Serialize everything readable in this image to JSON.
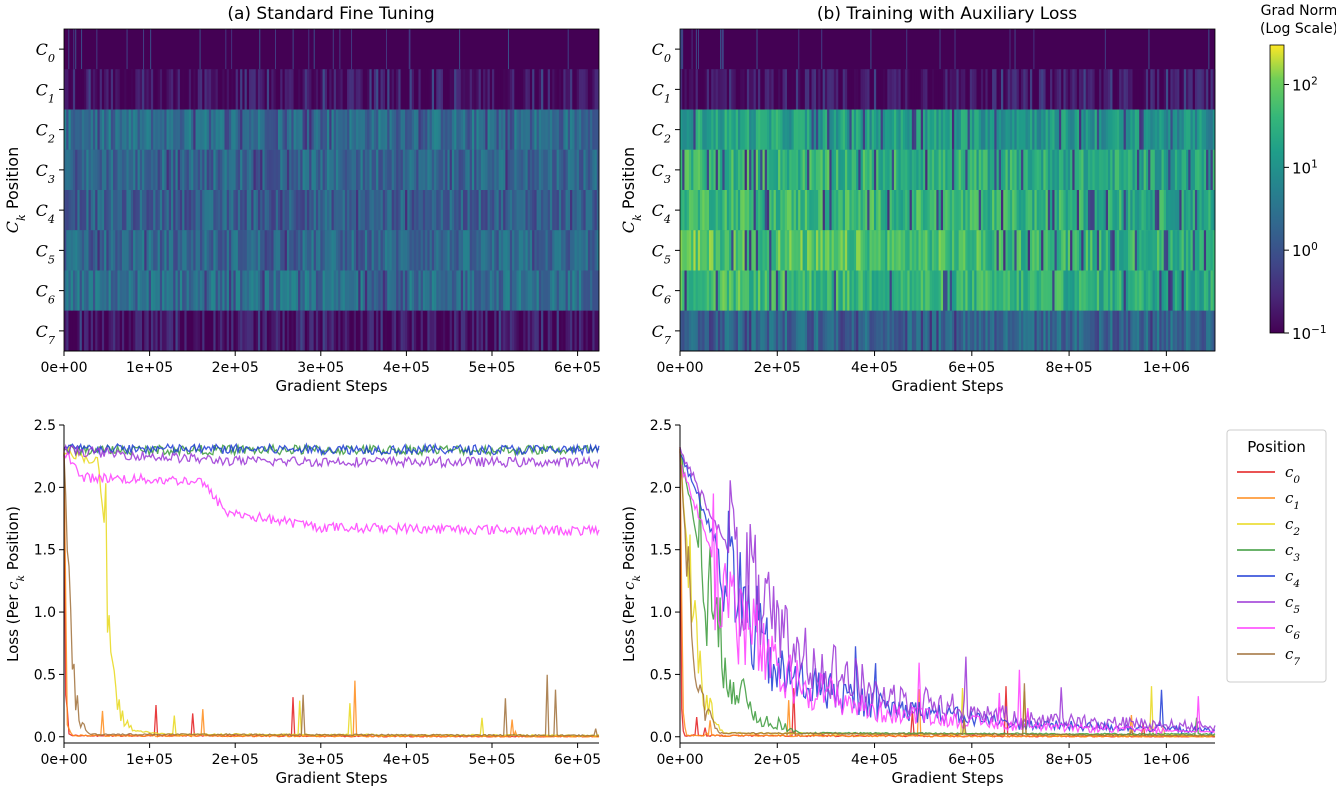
{
  "chart_data": [
    {
      "id": "heat_a",
      "type": "heatmap",
      "title": "(a) Standard Fine Tuning",
      "xlabel": "Gradient Steps",
      "ylabel": "Position",
      "ylabel_symbol": "C",
      "ylabel_sub": "k",
      "xlim": [
        0,
        625000
      ],
      "xticks": [
        0,
        100000,
        200000,
        300000,
        400000,
        500000,
        600000
      ],
      "xtick_labels": [
        "0e+00",
        "1e+05",
        "2e+05",
        "3e+05",
        "4e+05",
        "5e+05",
        "6e+05"
      ],
      "rows": [
        "C0",
        "C1",
        "C2",
        "C3",
        "C4",
        "C5",
        "C6",
        "C7"
      ],
      "row_symbol": "C",
      "row_subs": [
        "0",
        "1",
        "2",
        "3",
        "4",
        "5",
        "6",
        "7"
      ],
      "row_approx_grad_norm": [
        0.1,
        0.13,
        2.5,
        2.0,
        1.5,
        2.0,
        2.5,
        0.15
      ]
    },
    {
      "id": "heat_b",
      "type": "heatmap",
      "title": "(b) Training with Auxiliary Loss",
      "xlabel": "Gradient Steps",
      "ylabel": "Position",
      "ylabel_symbol": "C",
      "ylabel_sub": "k",
      "xlim": [
        0,
        1100000
      ],
      "xticks": [
        0,
        200000,
        400000,
        600000,
        800000,
        1000000
      ],
      "xtick_labels": [
        "0e+00",
        "2e+05",
        "4e+05",
        "6e+05",
        "8e+05",
        "1e+06"
      ],
      "rows": [
        "C0",
        "C1",
        "C2",
        "C3",
        "C4",
        "C5",
        "C6",
        "C7"
      ],
      "row_symbol": "C",
      "row_subs": [
        "0",
        "1",
        "2",
        "3",
        "4",
        "5",
        "6",
        "7"
      ],
      "row_approx_grad_norm": [
        0.1,
        0.15,
        12,
        25,
        30,
        40,
        30,
        2
      ]
    },
    {
      "id": "colorbar",
      "type": "colorbar",
      "title_line1": "Grad Norm",
      "title_line2": "(Log Scale)",
      "scale": "log",
      "range": [
        0.1,
        300
      ],
      "tick_values": [
        0.1,
        1,
        10,
        100
      ],
      "tick_base": "10",
      "tick_exps": [
        "−1",
        "0",
        "1",
        "2"
      ],
      "colormap": "viridis"
    },
    {
      "id": "loss_a",
      "type": "line",
      "xlabel": "Gradient Steps",
      "ylabel_prefix": "Loss (Per",
      "ylabel_symbol": "c",
      "ylabel_sub": "k",
      "ylabel_suffix": "Position)",
      "xlim": [
        0,
        625000
      ],
      "ylim": [
        -0.05,
        2.5
      ],
      "xticks": [
        0,
        100000,
        200000,
        300000,
        400000,
        500000,
        600000
      ],
      "xtick_labels": [
        "0e+00",
        "1e+05",
        "2e+05",
        "3e+05",
        "4e+05",
        "5e+05",
        "6e+05"
      ],
      "yticks": [
        0.0,
        0.5,
        1.0,
        1.5,
        2.0,
        2.5
      ],
      "ytick_labels": [
        "0.0",
        "0.5",
        "1.0",
        "1.5",
        "2.0",
        "2.5"
      ],
      "series": [
        {
          "name": "c0",
          "color": "#e41a1c",
          "x": [
            0,
            2000,
            6000,
            625000
          ],
          "y": [
            2.3,
            0.4,
            0.01,
            0.0
          ]
        },
        {
          "name": "c1",
          "color": "#ff8c1a",
          "x": [
            0,
            3000,
            9000,
            625000
          ],
          "y": [
            2.3,
            0.15,
            0.01,
            0.0
          ]
        },
        {
          "name": "c2",
          "color": "#e8d81a",
          "x": [
            0,
            40000,
            47000,
            55000,
            65000,
            80000,
            120000,
            625000
          ],
          "y": [
            2.3,
            2.2,
            1.7,
            0.5,
            0.2,
            0.05,
            0.02,
            0.01
          ]
        },
        {
          "name": "c3",
          "color": "#3a9a3a",
          "x": [
            0,
            625000
          ],
          "y": [
            2.3,
            2.3
          ]
        },
        {
          "name": "c4",
          "color": "#1f3bd6",
          "x": [
            0,
            625000
          ],
          "y": [
            2.31,
            2.3
          ]
        },
        {
          "name": "c5",
          "color": "#9b35d6",
          "x": [
            0,
            100000,
            200000,
            625000
          ],
          "y": [
            2.3,
            2.25,
            2.21,
            2.2
          ]
        },
        {
          "name": "c6",
          "color": "#ff3dff",
          "x": [
            0,
            20000,
            160000,
            190000,
            300000,
            625000
          ],
          "y": [
            2.3,
            2.08,
            2.05,
            1.8,
            1.68,
            1.65
          ]
        },
        {
          "name": "c7",
          "color": "#a0703a",
          "x": [
            0,
            4000,
            10000,
            20000,
            30000,
            625000
          ],
          "y": [
            2.3,
            1.5,
            0.5,
            0.1,
            0.02,
            0.01
          ]
        }
      ]
    },
    {
      "id": "loss_b",
      "type": "line",
      "xlabel": "Gradient Steps",
      "ylabel_prefix": "Loss (Per",
      "ylabel_symbol": "c",
      "ylabel_sub": "k",
      "ylabel_suffix": "Position)",
      "xlim": [
        0,
        1100000
      ],
      "ylim": [
        -0.05,
        2.5
      ],
      "xticks": [
        0,
        200000,
        400000,
        600000,
        800000,
        1000000
      ],
      "xtick_labels": [
        "0e+00",
        "2e+05",
        "4e+05",
        "6e+05",
        "8e+05",
        "1e+06"
      ],
      "yticks": [
        0.0,
        0.5,
        1.0,
        1.5,
        2.0,
        2.5
      ],
      "ytick_labels": [
        "0.0",
        "0.5",
        "1.0",
        "1.5",
        "2.0",
        "2.5"
      ],
      "legend_title": "Position",
      "legend_loc": "right",
      "series": [
        {
          "name": "c0",
          "color": "#e41a1c",
          "x": [
            0,
            3000,
            8000,
            1100000
          ],
          "y": [
            2.3,
            0.3,
            0.01,
            0.0
          ]
        },
        {
          "name": "c1",
          "color": "#ff8c1a",
          "x": [
            0,
            5000,
            12000,
            1100000
          ],
          "y": [
            2.3,
            0.2,
            0.01,
            0.0
          ]
        },
        {
          "name": "c2",
          "color": "#e8d81a",
          "x": [
            0,
            20000,
            50000,
            90000,
            1100000
          ],
          "y": [
            2.3,
            1.2,
            0.3,
            0.03,
            0.01
          ]
        },
        {
          "name": "c3",
          "color": "#3a9a3a",
          "x": [
            0,
            50000,
            100000,
            160000,
            250000,
            1100000
          ],
          "y": [
            2.3,
            1.3,
            0.5,
            0.15,
            0.03,
            0.02
          ]
        },
        {
          "name": "c4",
          "color": "#1f3bd6",
          "x": [
            0,
            100000,
            200000,
            400000,
            700000,
            1100000
          ],
          "y": [
            2.3,
            1.3,
            0.5,
            0.25,
            0.1,
            0.05
          ]
        },
        {
          "name": "c5",
          "color": "#9b35d6",
          "x": [
            0,
            100000,
            200000,
            400000,
            700000,
            1100000
          ],
          "y": [
            2.3,
            1.5,
            0.8,
            0.35,
            0.15,
            0.08
          ]
        },
        {
          "name": "c6",
          "color": "#ff3dff",
          "x": [
            0,
            100000,
            200000,
            400000,
            700000,
            1100000
          ],
          "y": [
            2.2,
            1.1,
            0.5,
            0.2,
            0.08,
            0.04
          ]
        },
        {
          "name": "c7",
          "color": "#a0703a",
          "x": [
            0,
            20000,
            40000,
            80000,
            1100000
          ],
          "y": [
            2.3,
            1.0,
            0.3,
            0.03,
            0.01
          ]
        }
      ]
    }
  ]
}
